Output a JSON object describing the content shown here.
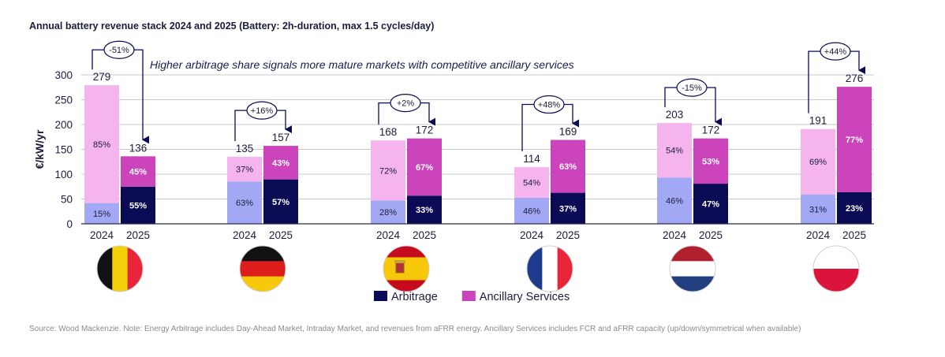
{
  "title": "Annual battery revenue stack 2024 and 2025 (Battery: 2h-duration, max 1.5 cycles/day)",
  "source": "Source: Wood Mackenzie. Note: Energy Arbitrage includes Day-Ahead Market, Intraday Market, and revenues from aFRR energy. Ancillary Services includes FCR and aFRR capacity (up/down/symmetrical when available)",
  "colors": {
    "arb2024": "#a3a8f5",
    "arb2025": "#0a0a55",
    "anc2024": "#f5b4ee",
    "anc2025": "#cc44bb",
    "axis_text": "#1c1c3c",
    "grid": "#c8c8c8"
  },
  "chart_data": {
    "type": "bar",
    "stacked": true,
    "ylabel": "€/kW/yr",
    "ylim": [
      0,
      300
    ],
    "yticks": [
      0,
      50,
      100,
      150,
      200,
      250,
      300
    ],
    "grid": true,
    "annotation": "Higher arbitrage share signals more mature markets with competitive ancillary services",
    "legend": {
      "position": "bottom-center",
      "entries": [
        "Arbitrage",
        "Ancillary Services"
      ]
    },
    "series_keys": [
      "Arbitrage",
      "Ancillary Services"
    ],
    "groups": [
      {
        "flag": "belgium-flag",
        "change": "-51%",
        "bars": [
          {
            "year": "2024",
            "total": 279,
            "arbitrage_pct": "15%",
            "ancillary_pct": "85%"
          },
          {
            "year": "2025",
            "total": 136,
            "arbitrage_pct": "55%",
            "ancillary_pct": "45%"
          }
        ]
      },
      {
        "flag": "germany-flag",
        "change": "+16%",
        "bars": [
          {
            "year": "2024",
            "total": 135,
            "arbitrage_pct": "63%",
            "ancillary_pct": "37%"
          },
          {
            "year": "2025",
            "total": 157,
            "arbitrage_pct": "57%",
            "ancillary_pct": "43%"
          }
        ]
      },
      {
        "flag": "spain-flag",
        "change": "+2%",
        "bars": [
          {
            "year": "2024",
            "total": 168,
            "arbitrage_pct": "28%",
            "ancillary_pct": "72%"
          },
          {
            "year": "2025",
            "total": 172,
            "arbitrage_pct": "33%",
            "ancillary_pct": "67%"
          }
        ]
      },
      {
        "flag": "france-flag",
        "change": "+48%",
        "bars": [
          {
            "year": "2024",
            "total": 114,
            "arbitrage_pct": "46%",
            "ancillary_pct": "54%"
          },
          {
            "year": "2025",
            "total": 169,
            "arbitrage_pct": "37%",
            "ancillary_pct": "63%"
          }
        ]
      },
      {
        "flag": "netherlands-flag",
        "change": "-15%",
        "bars": [
          {
            "year": "2024",
            "total": 203,
            "arbitrage_pct": "46%",
            "ancillary_pct": "54%"
          },
          {
            "year": "2025",
            "total": 172,
            "arbitrage_pct": "47%",
            "ancillary_pct": "53%"
          }
        ]
      },
      {
        "flag": "poland-flag",
        "change": "+44%",
        "bars": [
          {
            "year": "2024",
            "total": 191,
            "arbitrage_pct": "31%",
            "ancillary_pct": "69%"
          },
          {
            "year": "2025",
            "total": 276,
            "arbitrage_pct": "23%",
            "ancillary_pct": "77%"
          }
        ]
      }
    ]
  }
}
